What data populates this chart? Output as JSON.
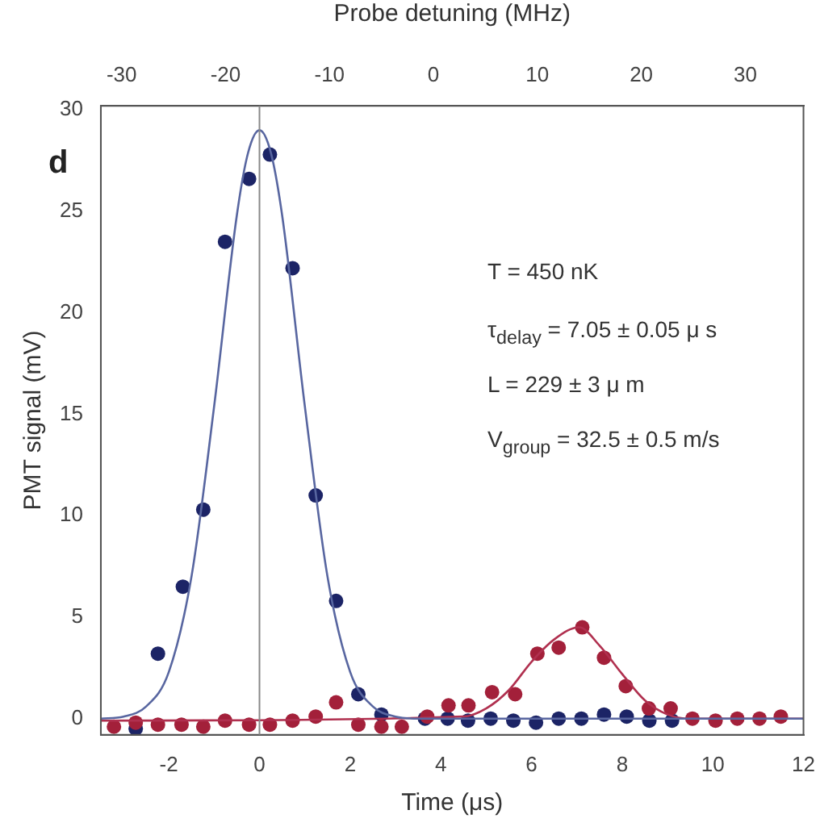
{
  "chart_data": {
    "type": "scatter",
    "xlabel": "Time (μs)",
    "ylabel": "PMT signal (mV)",
    "x2label": "Probe detuning (MHz)",
    "xlim": [
      -3.5,
      12
    ],
    "xticks": [
      -2,
      0,
      2,
      4,
      6,
      8,
      10,
      12
    ],
    "ylim": [
      -0.8,
      30.2
    ],
    "yticks": [
      0,
      5,
      10,
      15,
      20,
      25,
      30
    ],
    "x2lim": [
      -32,
      35.6
    ],
    "x2ticks": [
      -30,
      -20,
      -10,
      0,
      10,
      20,
      30
    ],
    "grid": false,
    "legend": false,
    "marker": "circle",
    "ref_lines": [
      {
        "axis": "x",
        "value": 0,
        "color": "#8a8a8a"
      }
    ],
    "annotations": [
      "d",
      "T = 450 nK",
      "τ$_{delay}$ = 7.05 ± 0.05 μ s",
      "L = 229 ± 3 μ m",
      "V$_{group}$ = 32.5 ± 0.5 m/s"
    ],
    "series": [
      {
        "type": "line",
        "marker": "none",
        "color": "#5866a0",
        "x": [
          -3.5,
          -3,
          -2.5,
          -2,
          -1.5,
          -1,
          -0.5,
          -0.25,
          0,
          0.25,
          0.5,
          1,
          1.5,
          2,
          2.5,
          3,
          3.5,
          12
        ],
        "values": [
          0,
          0.1,
          0.6,
          2.3,
          7,
          15.4,
          24.8,
          27.9,
          29,
          27.9,
          24.8,
          15.4,
          7,
          2.3,
          0.6,
          0.1,
          0,
          0
        ]
      },
      {
        "type": "line",
        "marker": "none",
        "color": "#b0304f",
        "x": [
          -3.5,
          4.5,
          5,
          5.5,
          6,
          6.5,
          7.05,
          7.5,
          8,
          8.5,
          9,
          9.5,
          12
        ],
        "values": [
          -0.1,
          0.1,
          0.5,
          1.4,
          2.8,
          3.9,
          4.5,
          3.6,
          2.2,
          0.9,
          0.2,
          0,
          0
        ]
      },
      {
        "color": "#a3203a",
        "x": [
          -3.21,
          -2.73,
          -2.24,
          -1.72,
          -1.24,
          -0.76,
          -0.23,
          0.23,
          0.73,
          1.24,
          1.69,
          2.18,
          2.69,
          3.14,
          3.7,
          4.17,
          4.61,
          5.13,
          5.64,
          6.13,
          6.6,
          7.12,
          7.6,
          8.08,
          8.59,
          9.07,
          9.55,
          10.06,
          10.54,
          11.03,
          11.5
        ],
        "values": [
          -0.4,
          -0.2,
          -0.3,
          -0.3,
          -0.4,
          -0.1,
          -0.3,
          -0.3,
          -0.1,
          0.1,
          0.8,
          -0.3,
          -0.4,
          -0.4,
          0.1,
          0.65,
          0.65,
          1.3,
          1.2,
          3.2,
          3.5,
          4.5,
          3,
          1.6,
          0.5,
          0.5,
          0,
          -0.1,
          0,
          0,
          0.1
        ]
      },
      {
        "color": "#1c2466",
        "x": [
          -2.73,
          -2.24,
          -1.69,
          -1.24,
          -0.76,
          -0.23,
          0.23,
          0.73,
          1.24,
          1.69,
          2.18,
          2.69,
          3.65,
          4.15,
          4.6,
          5.1,
          5.6,
          6.1,
          6.6,
          7.1,
          7.6,
          8.1,
          8.6,
          9.1
        ],
        "values": [
          -0.5,
          3.2,
          6.5,
          10.3,
          23.5,
          26.6,
          27.8,
          22.2,
          11,
          5.8,
          1.2,
          0.2,
          0,
          0,
          -0.1,
          0,
          -0.1,
          -0.2,
          0,
          0,
          0.2,
          0.1,
          -0.1,
          -0.1
        ]
      }
    ]
  }
}
